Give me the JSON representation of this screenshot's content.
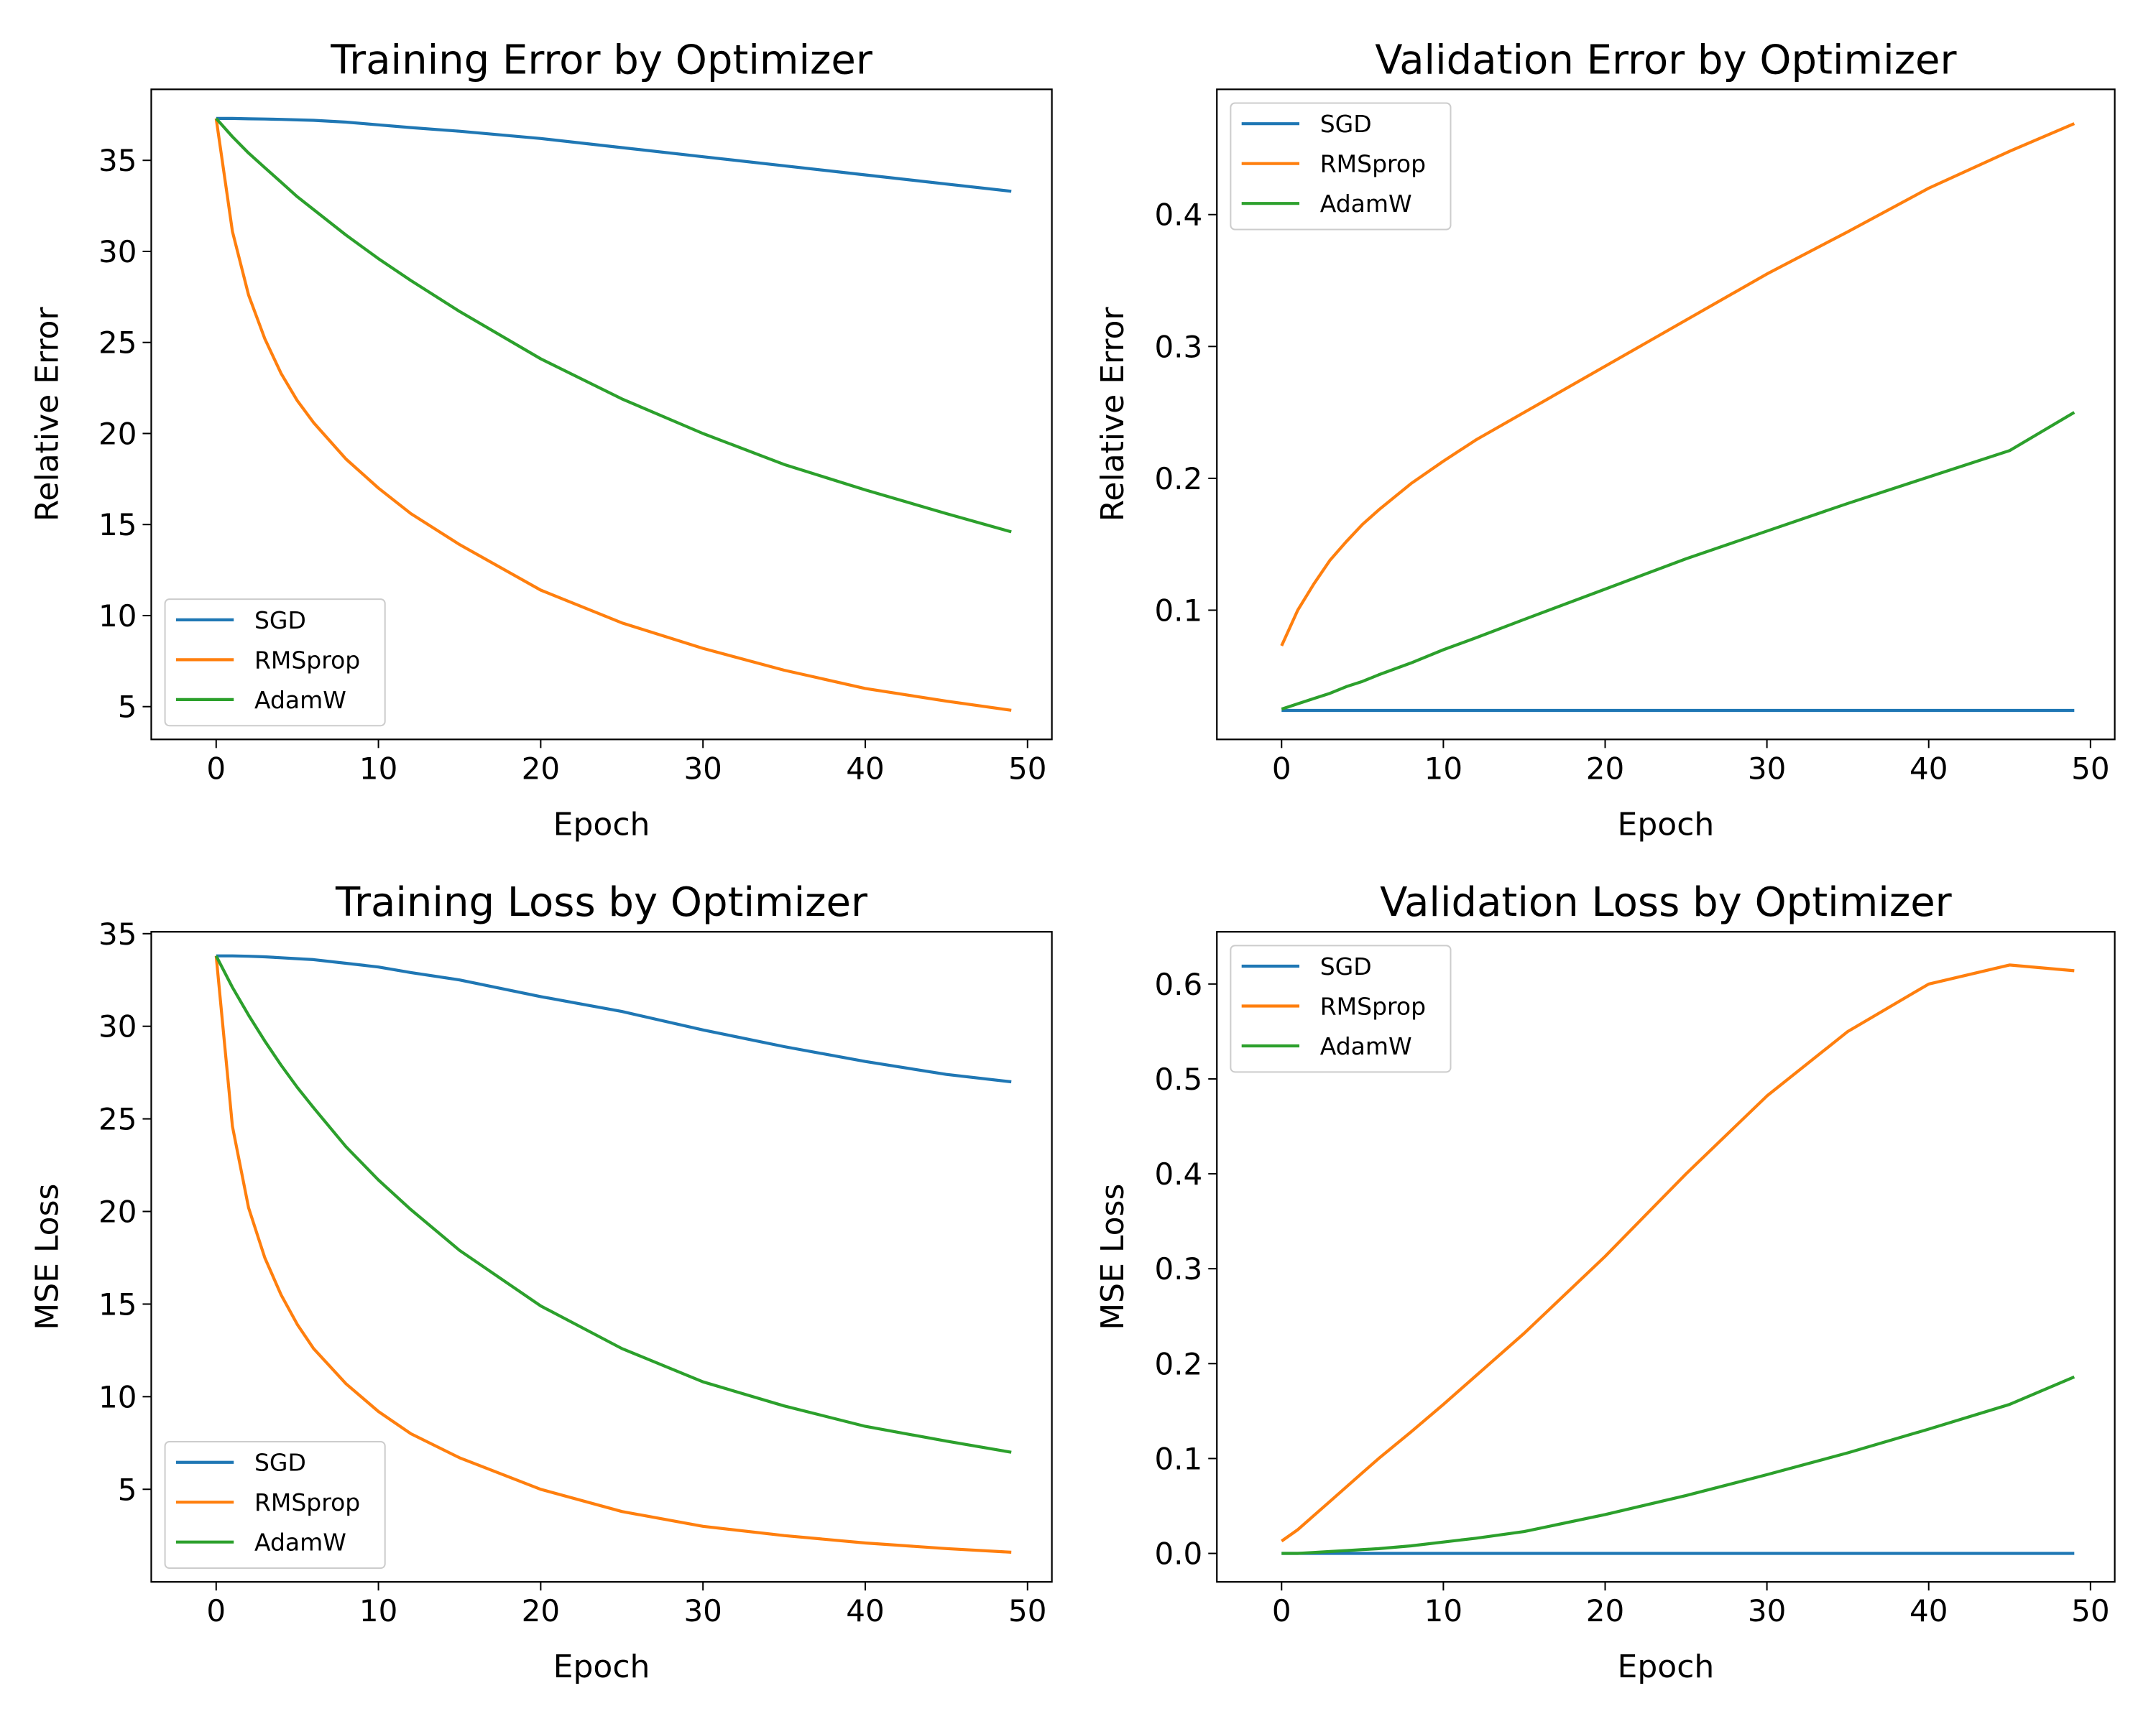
{
  "colors": {
    "SGD": "#1f77b4",
    "RMSprop": "#ff7f0e",
    "AdamW": "#2ca02c"
  },
  "chart_data": [
    {
      "type": "line",
      "title": "Training Error by Optimizer",
      "xlabel": "Epoch",
      "ylabel": "Relative Error",
      "xlim": [
        -4,
        51.5
      ],
      "ylim": [
        3.2,
        38.9
      ],
      "xticks": [
        0,
        10,
        20,
        30,
        40,
        50
      ],
      "yticks": [
        5,
        10,
        15,
        20,
        25,
        30,
        35
      ],
      "tick_labels_x": [
        "0",
        "10",
        "20",
        "30",
        "40",
        "50"
      ],
      "tick_labels_y": [
        "5",
        "10",
        "15",
        "20",
        "25",
        "30",
        "35"
      ],
      "legend": {
        "placement": "lower-left",
        "entries": [
          "SGD",
          "RMSprop",
          "AdamW"
        ]
      },
      "grid": false,
      "x": [
        0,
        1,
        2,
        3,
        4,
        5,
        6,
        8,
        10,
        12,
        15,
        20,
        25,
        30,
        35,
        40,
        45,
        49
      ],
      "series": [
        {
          "name": "SGD",
          "values": [
            37.3,
            37.3,
            37.28,
            37.27,
            37.25,
            37.22,
            37.2,
            37.1,
            36.95,
            36.8,
            36.6,
            36.2,
            35.7,
            35.2,
            34.7,
            34.2,
            33.7,
            33.3
          ]
        },
        {
          "name": "RMSprop",
          "values": [
            37.3,
            31.1,
            27.6,
            25.2,
            23.3,
            21.8,
            20.6,
            18.6,
            17.0,
            15.6,
            13.9,
            11.4,
            9.6,
            8.2,
            7.0,
            6.0,
            5.3,
            4.8
          ]
        },
        {
          "name": "AdamW",
          "values": [
            37.3,
            36.3,
            35.4,
            34.6,
            33.8,
            33.0,
            32.3,
            30.9,
            29.6,
            28.4,
            26.7,
            24.1,
            21.9,
            20.0,
            18.3,
            16.9,
            15.6,
            14.6
          ]
        }
      ]
    },
    {
      "type": "line",
      "title": "Validation Error by Optimizer",
      "xlabel": "Epoch",
      "ylabel": "Relative Error",
      "xlim": [
        -4,
        51.5
      ],
      "ylim": [
        0.002,
        0.495
      ],
      "xticks": [
        0,
        10,
        20,
        30,
        40,
        50
      ],
      "yticks": [
        0.1,
        0.2,
        0.3,
        0.4
      ],
      "tick_labels_x": [
        "0",
        "10",
        "20",
        "30",
        "40",
        "50"
      ],
      "tick_labels_y": [
        "0.1",
        "0.2",
        "0.3",
        "0.4"
      ],
      "legend": {
        "placement": "upper-left",
        "entries": [
          "SGD",
          "RMSprop",
          "AdamW"
        ]
      },
      "grid": false,
      "x": [
        0,
        1,
        2,
        3,
        4,
        5,
        6,
        8,
        10,
        12,
        15,
        20,
        25,
        30,
        35,
        40,
        45,
        49
      ],
      "series": [
        {
          "name": "SGD",
          "values": [
            0.024,
            0.024,
            0.024,
            0.024,
            0.024,
            0.024,
            0.024,
            0.024,
            0.024,
            0.024,
            0.024,
            0.024,
            0.024,
            0.024,
            0.024,
            0.024,
            0.024,
            0.024
          ]
        },
        {
          "name": "RMSprop",
          "values": [
            0.073,
            0.1,
            0.12,
            0.138,
            0.152,
            0.165,
            0.176,
            0.196,
            0.213,
            0.229,
            0.25,
            0.285,
            0.32,
            0.355,
            0.387,
            0.42,
            0.448,
            0.469
          ]
        },
        {
          "name": "AdamW",
          "values": [
            0.025,
            0.029,
            0.033,
            0.037,
            0.042,
            0.046,
            0.051,
            0.06,
            0.07,
            0.079,
            0.093,
            0.116,
            0.139,
            0.16,
            0.181,
            0.201,
            0.221,
            0.25
          ]
        }
      ]
    },
    {
      "type": "line",
      "title": "Training Loss by Optimizer",
      "xlabel": "Epoch",
      "ylabel": "MSE Loss",
      "xlim": [
        -4,
        51.5
      ],
      "ylim": [
        0,
        35.1
      ],
      "xticks": [
        0,
        10,
        20,
        30,
        40,
        50
      ],
      "yticks": [
        5,
        10,
        15,
        20,
        25,
        30,
        35
      ],
      "tick_labels_x": [
        "0",
        "10",
        "20",
        "30",
        "40",
        "50"
      ],
      "tick_labels_y": [
        "5",
        "10",
        "15",
        "20",
        "25",
        "30",
        "35"
      ],
      "legend": {
        "placement": "lower-left",
        "entries": [
          "SGD",
          "RMSprop",
          "AdamW"
        ]
      },
      "grid": false,
      "x": [
        0,
        1,
        2,
        3,
        4,
        5,
        6,
        8,
        10,
        12,
        15,
        20,
        25,
        30,
        35,
        40,
        45,
        49
      ],
      "series": [
        {
          "name": "SGD",
          "values": [
            33.8,
            33.8,
            33.78,
            33.75,
            33.7,
            33.65,
            33.6,
            33.4,
            33.2,
            32.9,
            32.5,
            31.6,
            30.8,
            29.8,
            28.9,
            28.1,
            27.4,
            27.0
          ]
        },
        {
          "name": "RMSprop",
          "values": [
            33.8,
            24.6,
            20.2,
            17.5,
            15.5,
            13.9,
            12.6,
            10.7,
            9.2,
            8.0,
            6.7,
            5.0,
            3.8,
            3.0,
            2.5,
            2.1,
            1.8,
            1.6
          ]
        },
        {
          "name": "AdamW",
          "values": [
            33.8,
            32.1,
            30.6,
            29.2,
            27.9,
            26.7,
            25.6,
            23.5,
            21.7,
            20.1,
            17.9,
            14.9,
            12.6,
            10.8,
            9.5,
            8.4,
            7.6,
            7.0
          ]
        }
      ]
    },
    {
      "type": "line",
      "title": "Validation Loss by Optimizer",
      "xlabel": "Epoch",
      "ylabel": "MSE Loss",
      "xlim": [
        -4,
        51.5
      ],
      "ylim": [
        -0.03,
        0.655
      ],
      "xticks": [
        0,
        10,
        20,
        30,
        40,
        50
      ],
      "yticks": [
        0.0,
        0.1,
        0.2,
        0.3,
        0.4,
        0.5,
        0.6
      ],
      "tick_labels_x": [
        "0",
        "10",
        "20",
        "30",
        "40",
        "50"
      ],
      "tick_labels_y": [
        "0.0",
        "0.1",
        "0.2",
        "0.3",
        "0.4",
        "0.5",
        "0.6"
      ],
      "legend": {
        "placement": "upper-left",
        "entries": [
          "SGD",
          "RMSprop",
          "AdamW"
        ]
      },
      "grid": false,
      "x": [
        0,
        1,
        2,
        3,
        4,
        5,
        6,
        8,
        10,
        12,
        15,
        20,
        25,
        30,
        35,
        40,
        45,
        49
      ],
      "series": [
        {
          "name": "SGD",
          "values": [
            0.0,
            0.0,
            0.0,
            0.0,
            0.0,
            0.0,
            0.0,
            0.0,
            0.0,
            0.0,
            0.0,
            0.0,
            0.0,
            0.0,
            0.0,
            0.0,
            0.0,
            0.0
          ]
        },
        {
          "name": "RMSprop",
          "values": [
            0.013,
            0.025,
            0.04,
            0.055,
            0.07,
            0.085,
            0.1,
            0.128,
            0.157,
            0.187,
            0.232,
            0.313,
            0.4,
            0.482,
            0.55,
            0.6,
            0.62,
            0.614
          ]
        },
        {
          "name": "AdamW",
          "values": [
            0.0,
            0.0,
            0.001,
            0.002,
            0.003,
            0.004,
            0.005,
            0.008,
            0.012,
            0.016,
            0.023,
            0.041,
            0.061,
            0.083,
            0.106,
            0.131,
            0.157,
            0.186
          ]
        }
      ]
    }
  ]
}
